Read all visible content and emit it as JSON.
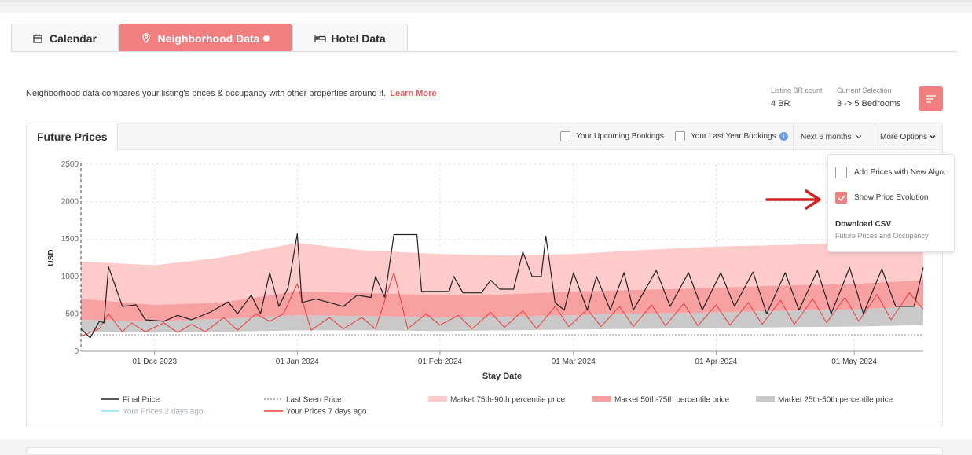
{
  "tabs": [
    {
      "label": "Calendar",
      "icon": "calendar-icon",
      "active": false
    },
    {
      "label": "Neighborhood Data",
      "icon": "map-pin-icon",
      "active": true
    },
    {
      "label": "Hotel Data",
      "icon": "bed-icon",
      "active": false
    }
  ],
  "description": "Neighborhood data compares your listing's prices & occupancy with other properties around it.",
  "learn_more": "Learn More",
  "listing_br": {
    "label": "Listing BR count",
    "value": "4 BR"
  },
  "current_selection": {
    "label": "Current Selection",
    "value": "3 -> 5 Bedrooms"
  },
  "panel": {
    "title": "Future Prices",
    "upcoming_bookings": "Your Upcoming Bookings",
    "last_year_bookings": "Your Last Year Bookings",
    "period": "Next 6 months",
    "more_options": "More Options"
  },
  "menu": {
    "add_prices": "Add Prices with New Algo.",
    "show_evolution": "Show Price Evolution",
    "download_csv": "Download CSV",
    "download_sub": "Future Prices and Occupancy"
  },
  "colors": {
    "accent": "#f27f80",
    "p75_90": "#fecbcb",
    "p50_75": "#f7a1a3",
    "p25_50": "#c9c9c9",
    "final": "#222222",
    "seven_days": "#ee3b3b",
    "two_days": "#8fe0f0",
    "last_seen": "#9a9a9a",
    "arrow": "#d42020"
  },
  "chart_data": {
    "type": "line",
    "xlabel": "Stay Date",
    "ylabel": "USD",
    "ylim": [
      0,
      2500
    ],
    "yticks": [
      0,
      500,
      1000,
      1500,
      2000,
      2500
    ],
    "xlim": [
      "2023-11-15",
      "2024-05-16"
    ],
    "xticks": [
      {
        "date": "2023-12-01",
        "label": "01 Dec 2023"
      },
      {
        "date": "2024-01-01",
        "label": "01 Jan 2024"
      },
      {
        "date": "2024-02-01",
        "label": "01 Feb 2024"
      },
      {
        "date": "2024-03-01",
        "label": "01 Mar 2024"
      },
      {
        "date": "2024-04-01",
        "label": "01 Apr 2024"
      },
      {
        "date": "2024-05-01",
        "label": "01 May 2024"
      }
    ],
    "legend": [
      {
        "name": "Final Price",
        "style": "line",
        "color": "#222222"
      },
      {
        "name": "Last Seen Price",
        "style": "dotted",
        "color": "#9a9a9a"
      },
      {
        "name": "Market 75th-90th percentile price",
        "style": "band",
        "color": "#fecbcb"
      },
      {
        "name": "Market 50th-75th percentile price",
        "style": "band",
        "color": "#f7a1a3"
      },
      {
        "name": "Market 25th-50th percentile price",
        "style": "band",
        "color": "#c9c9c9"
      },
      {
        "name": "Your Prices 2 days ago",
        "style": "line",
        "color": "#8fe0f0"
      },
      {
        "name": "Your Prices 7 days ago",
        "style": "line",
        "color": "#ee3b3b"
      }
    ],
    "last_seen_price": 220,
    "series": [
      {
        "name": "Final Price",
        "points": [
          [
            "2023-11-15",
            300
          ],
          [
            "2023-11-17",
            180
          ],
          [
            "2023-11-19",
            400
          ],
          [
            "2023-11-20",
            380
          ],
          [
            "2023-11-21",
            1130
          ],
          [
            "2023-11-24",
            600
          ],
          [
            "2023-11-27",
            620
          ],
          [
            "2023-11-29",
            420
          ],
          [
            "2023-12-03",
            400
          ],
          [
            "2023-12-06",
            480
          ],
          [
            "2023-12-09",
            420
          ],
          [
            "2023-12-13",
            520
          ],
          [
            "2023-12-17",
            660
          ],
          [
            "2023-12-19",
            500
          ],
          [
            "2023-12-22",
            750
          ],
          [
            "2023-12-24",
            500
          ],
          [
            "2023-12-26",
            1050
          ],
          [
            "2023-12-28",
            600
          ],
          [
            "2023-12-30",
            850
          ],
          [
            "2024-01-01",
            1570
          ],
          [
            "2024-01-02",
            650
          ],
          [
            "2024-01-05",
            700
          ],
          [
            "2024-01-08",
            650
          ],
          [
            "2024-01-11",
            600
          ],
          [
            "2024-01-14",
            750
          ],
          [
            "2024-01-17",
            720
          ],
          [
            "2024-01-18",
            1000
          ],
          [
            "2024-01-20",
            720
          ],
          [
            "2024-01-22",
            1560
          ],
          [
            "2024-01-25",
            1560
          ],
          [
            "2024-01-27",
            1560
          ],
          [
            "2024-01-28",
            800
          ],
          [
            "2024-02-03",
            800
          ],
          [
            "2024-02-04",
            1000
          ],
          [
            "2024-02-06",
            780
          ],
          [
            "2024-02-10",
            780
          ],
          [
            "2024-02-12",
            950
          ],
          [
            "2024-02-14",
            830
          ],
          [
            "2024-02-17",
            830
          ],
          [
            "2024-02-19",
            1330
          ],
          [
            "2024-02-21",
            1000
          ],
          [
            "2024-02-23",
            1000
          ],
          [
            "2024-02-24",
            1540
          ],
          [
            "2024-02-26",
            650
          ],
          [
            "2024-02-28",
            550
          ],
          [
            "2024-03-01",
            1050
          ],
          [
            "2024-03-04",
            550
          ],
          [
            "2024-03-06",
            1000
          ],
          [
            "2024-03-09",
            550
          ],
          [
            "2024-03-12",
            1050
          ],
          [
            "2024-03-14",
            550
          ],
          [
            "2024-03-19",
            1080
          ],
          [
            "2024-03-22",
            600
          ],
          [
            "2024-03-26",
            1050
          ],
          [
            "2024-03-29",
            550
          ],
          [
            "2024-04-02",
            1050
          ],
          [
            "2024-04-05",
            600
          ],
          [
            "2024-04-09",
            1060
          ],
          [
            "2024-04-12",
            500
          ],
          [
            "2024-04-16",
            1050
          ],
          [
            "2024-04-19",
            550
          ],
          [
            "2024-04-23",
            1080
          ],
          [
            "2024-04-26",
            500
          ],
          [
            "2024-04-30",
            1120
          ],
          [
            "2024-05-03",
            500
          ],
          [
            "2024-05-07",
            1100
          ],
          [
            "2024-05-10",
            600
          ],
          [
            "2024-05-14",
            600
          ],
          [
            "2024-05-16",
            1120
          ]
        ]
      },
      {
        "name": "Your Prices 7 days ago",
        "points": [
          [
            "2023-11-15",
            200
          ],
          [
            "2023-11-19",
            300
          ],
          [
            "2023-11-21",
            500
          ],
          [
            "2023-11-24",
            260
          ],
          [
            "2023-11-26",
            380
          ],
          [
            "2023-11-29",
            260
          ],
          [
            "2023-12-03",
            380
          ],
          [
            "2023-12-06",
            250
          ],
          [
            "2023-12-09",
            360
          ],
          [
            "2023-12-12",
            260
          ],
          [
            "2023-12-16",
            450
          ],
          [
            "2023-12-19",
            280
          ],
          [
            "2023-12-23",
            500
          ],
          [
            "2023-12-26",
            400
          ],
          [
            "2023-12-29",
            500
          ],
          [
            "2024-01-01",
            900
          ],
          [
            "2024-01-04",
            280
          ],
          [
            "2024-01-08",
            450
          ],
          [
            "2024-01-11",
            300
          ],
          [
            "2024-01-15",
            450
          ],
          [
            "2024-01-18",
            300
          ],
          [
            "2024-01-22",
            1050
          ],
          [
            "2024-01-25",
            300
          ],
          [
            "2024-01-29",
            500
          ],
          [
            "2024-02-01",
            350
          ],
          [
            "2024-02-05",
            480
          ],
          [
            "2024-02-08",
            300
          ],
          [
            "2024-02-12",
            520
          ],
          [
            "2024-02-15",
            320
          ],
          [
            "2024-02-19",
            540
          ],
          [
            "2024-02-22",
            300
          ],
          [
            "2024-02-26",
            600
          ],
          [
            "2024-02-29",
            330
          ],
          [
            "2024-03-04",
            560
          ],
          [
            "2024-03-07",
            330
          ],
          [
            "2024-03-11",
            600
          ],
          [
            "2024-03-14",
            330
          ],
          [
            "2024-03-18",
            620
          ],
          [
            "2024-03-21",
            340
          ],
          [
            "2024-03-25",
            640
          ],
          [
            "2024-03-28",
            340
          ],
          [
            "2024-04-01",
            620
          ],
          [
            "2024-04-04",
            350
          ],
          [
            "2024-04-08",
            650
          ],
          [
            "2024-04-11",
            360
          ],
          [
            "2024-04-15",
            680
          ],
          [
            "2024-04-18",
            360
          ],
          [
            "2024-04-22",
            700
          ],
          [
            "2024-04-25",
            380
          ],
          [
            "2024-04-29",
            720
          ],
          [
            "2024-05-02",
            400
          ],
          [
            "2024-05-06",
            760
          ],
          [
            "2024-05-09",
            420
          ],
          [
            "2024-05-13",
            780
          ],
          [
            "2024-05-16",
            560
          ]
        ]
      }
    ],
    "bands": [
      {
        "name": "Market 75th-90th percentile price",
        "x": [
          "2023-11-15",
          "2023-12-01",
          "2023-12-15",
          "2024-01-01",
          "2024-01-15",
          "2024-02-01",
          "2024-02-15",
          "2024-03-01",
          "2024-03-15",
          "2024-04-01",
          "2024-04-15",
          "2024-05-01",
          "2024-05-16"
        ],
        "low": [
          700,
          620,
          650,
          800,
          780,
          750,
          760,
          800,
          820,
          850,
          880,
          900,
          950
        ],
        "high": [
          1200,
          1150,
          1250,
          1450,
          1350,
          1300,
          1280,
          1300,
          1350,
          1400,
          1420,
          1450,
          1500
        ]
      },
      {
        "name": "Market 50th-75th percentile price",
        "x": [
          "2023-11-15",
          "2023-12-01",
          "2023-12-15",
          "2024-01-01",
          "2024-01-15",
          "2024-02-01",
          "2024-02-15",
          "2024-03-01",
          "2024-03-15",
          "2024-04-01",
          "2024-04-15",
          "2024-05-01",
          "2024-05-16"
        ],
        "low": [
          420,
          400,
          430,
          480,
          470,
          450,
          460,
          480,
          500,
          520,
          540,
          560,
          600
        ],
        "high": [
          700,
          620,
          650,
          800,
          780,
          750,
          760,
          800,
          820,
          850,
          880,
          900,
          950
        ]
      },
      {
        "name": "Market 25th-50th percentile price",
        "x": [
          "2023-11-15",
          "2023-12-01",
          "2023-12-15",
          "2024-01-01",
          "2024-01-15",
          "2024-02-01",
          "2024-02-15",
          "2024-03-01",
          "2024-03-15",
          "2024-04-01",
          "2024-04-15",
          "2024-05-01",
          "2024-05-16"
        ],
        "low": [
          260,
          250,
          260,
          280,
          280,
          270,
          280,
          290,
          300,
          310,
          320,
          330,
          350
        ],
        "high": [
          420,
          400,
          430,
          480,
          470,
          450,
          460,
          480,
          500,
          520,
          540,
          560,
          600
        ]
      }
    ]
  }
}
